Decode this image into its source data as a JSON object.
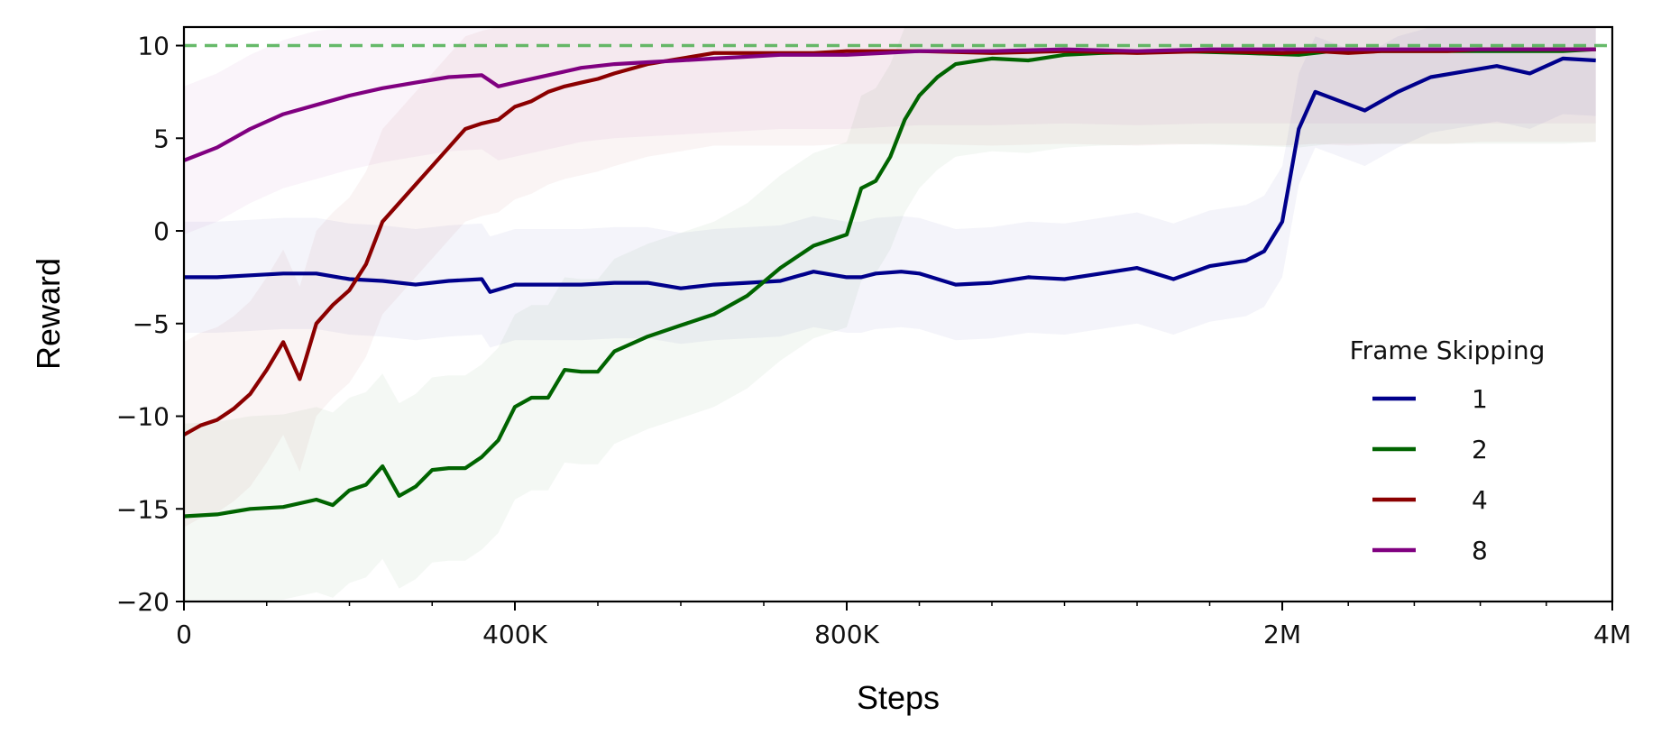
{
  "chart_data": {
    "type": "line",
    "xlabel": "Steps",
    "ylabel": "Reward",
    "x_tick_labels": [
      "0",
      "400K",
      "800K",
      "2M",
      "4M"
    ],
    "y_ticks": [
      10,
      5,
      0,
      -5,
      -10,
      -15,
      -20
    ],
    "y_tick_labels": [
      "10",
      "5",
      "0",
      "−5",
      "−10",
      "−15",
      "−20"
    ],
    "ylim": [
      -20,
      11
    ],
    "xlim": [
      0,
      4000000
    ],
    "x_scale": "mixed: 0–800K linear segments, 800K–4M compressed",
    "grid": false,
    "reference_line": {
      "y": 10,
      "style": "dashed",
      "color": "#4caf50"
    },
    "legend": {
      "title": "Frame Skipping",
      "placement": "lower-right"
    },
    "series": [
      {
        "name": "1",
        "color": "#00008b",
        "x": [
          0,
          40000,
          80000,
          120000,
          160000,
          200000,
          240000,
          280000,
          320000,
          360000,
          370000,
          400000,
          440000,
          480000,
          520000,
          560000,
          600000,
          640000,
          680000,
          720000,
          760000,
          800000,
          840000,
          880000,
          950000,
          1000000,
          1100000,
          1200000,
          1300000,
          1400000,
          1500000,
          1600000,
          1700000,
          1800000,
          1900000,
          1950000,
          2000000,
          2050000,
          2100000,
          2200000,
          2350000,
          2500000,
          2700000,
          2900000,
          3100000,
          3300000,
          3500000,
          3700000,
          3900000
        ],
        "y": [
          -2.5,
          -2.5,
          -2.4,
          -2.3,
          -2.3,
          -2.6,
          -2.7,
          -2.9,
          -2.7,
          -2.6,
          -3.3,
          -2.9,
          -2.9,
          -2.9,
          -2.8,
          -2.8,
          -3.1,
          -2.9,
          -2.8,
          -2.7,
          -2.2,
          -2.5,
          -2.5,
          -2.3,
          -2.2,
          -2.3,
          -2.9,
          -2.8,
          -2.5,
          -2.6,
          -2.3,
          -2.0,
          -2.6,
          -1.9,
          -1.6,
          -1.1,
          0.5,
          3.0,
          5.5,
          7.5,
          7.0,
          6.5,
          7.5,
          8.3,
          8.6,
          8.9,
          8.5,
          9.3,
          9.2
        ]
      },
      {
        "name": "2",
        "color": "#006400",
        "x": [
          0,
          40000,
          80000,
          120000,
          160000,
          180000,
          200000,
          220000,
          240000,
          260000,
          280000,
          300000,
          320000,
          340000,
          360000,
          380000,
          400000,
          420000,
          440000,
          460000,
          480000,
          500000,
          520000,
          560000,
          600000,
          640000,
          680000,
          720000,
          760000,
          800000,
          840000,
          880000,
          920000,
          960000,
          1000000,
          1050000,
          1100000,
          1200000,
          1300000,
          1400000,
          1500000,
          1700000,
          1900000,
          2100000,
          2300000,
          2500000,
          2700000,
          2900000,
          3100000,
          3300000,
          3500000,
          3700000,
          3900000
        ],
        "y": [
          -15.4,
          -15.3,
          -15.0,
          -14.9,
          -14.5,
          -14.8,
          -14.0,
          -13.7,
          -12.7,
          -14.3,
          -13.8,
          -12.9,
          -12.8,
          -12.8,
          -12.2,
          -11.3,
          -9.5,
          -9.0,
          -9.0,
          -7.5,
          -7.6,
          -7.6,
          -6.5,
          -5.7,
          -5.1,
          -4.5,
          -3.5,
          -2.0,
          -0.8,
          -0.2,
          2.3,
          2.7,
          4.0,
          6.0,
          7.3,
          8.3,
          9.0,
          9.3,
          9.2,
          9.5,
          9.6,
          9.7,
          9.6,
          9.5,
          9.7,
          9.7,
          9.7,
          9.7,
          9.7,
          9.7,
          9.7,
          9.7,
          9.8
        ]
      },
      {
        "name": "4",
        "color": "#8b0000",
        "x": [
          0,
          20000,
          40000,
          60000,
          80000,
          100000,
          120000,
          140000,
          150000,
          160000,
          180000,
          200000,
          220000,
          240000,
          260000,
          280000,
          300000,
          320000,
          340000,
          360000,
          380000,
          400000,
          420000,
          440000,
          460000,
          480000,
          500000,
          520000,
          560000,
          600000,
          640000,
          680000,
          720000,
          760000,
          800000,
          900000,
          1000000,
          1200000,
          1400000,
          1600000,
          1800000,
          2000000,
          2200000,
          2400000,
          2600000,
          2800000,
          3000000,
          3200000,
          3400000,
          3600000,
          3800000,
          3900000
        ],
        "y": [
          -11.0,
          -10.5,
          -10.2,
          -9.6,
          -8.8,
          -7.5,
          -6.0,
          -8.0,
          -6.5,
          -5.0,
          -4.0,
          -3.2,
          -1.8,
          0.5,
          1.5,
          2.5,
          3.5,
          4.5,
          5.5,
          5.8,
          6.0,
          6.7,
          7.0,
          7.5,
          7.8,
          8.0,
          8.2,
          8.5,
          9.0,
          9.3,
          9.6,
          9.6,
          9.6,
          9.6,
          9.7,
          9.7,
          9.7,
          9.6,
          9.7,
          9.6,
          9.7,
          9.6,
          9.7,
          9.6,
          9.7,
          9.7,
          9.7,
          9.8,
          9.8,
          9.8,
          9.8,
          9.8
        ]
      },
      {
        "name": "8",
        "color": "#800080",
        "x": [
          0,
          40000,
          80000,
          120000,
          160000,
          200000,
          240000,
          280000,
          320000,
          360000,
          380000,
          400000,
          440000,
          480000,
          520000,
          560000,
          600000,
          640000,
          680000,
          720000,
          760000,
          800000,
          900000,
          1000000,
          1200000,
          1400000,
          1600000,
          1800000,
          2000000,
          2400000,
          2800000,
          3200000,
          3600000,
          3900000
        ],
        "y": [
          3.8,
          4.5,
          5.5,
          6.3,
          6.8,
          7.3,
          7.7,
          8.0,
          8.3,
          8.4,
          7.8,
          8.0,
          8.4,
          8.8,
          9.0,
          9.1,
          9.2,
          9.3,
          9.4,
          9.5,
          9.5,
          9.5,
          9.6,
          9.7,
          9.7,
          9.8,
          9.7,
          9.8,
          9.8,
          9.8,
          9.8,
          9.8,
          9.8,
          9.8
        ]
      }
    ]
  }
}
